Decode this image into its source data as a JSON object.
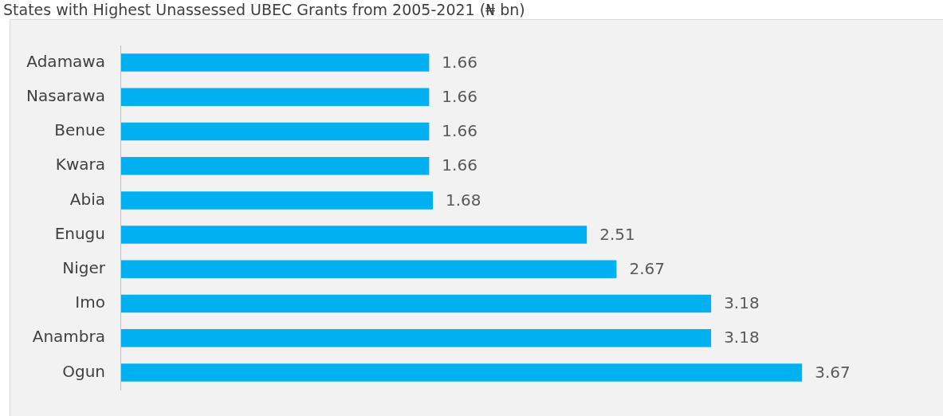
{
  "chart_data": {
    "type": "bar",
    "orientation": "horizontal",
    "title": "States with Highest Unassessed UBEC Grants from 2005-2021 (₦ bn)",
    "categories": [
      "Adamawa",
      "Nasarawa",
      "Benue",
      "Kwara",
      "Abia",
      "Enugu",
      "Niger",
      "Imo",
      "Anambra",
      "Ogun"
    ],
    "values": [
      1.66,
      1.66,
      1.66,
      1.66,
      1.68,
      2.51,
      2.67,
      3.18,
      3.18,
      3.67
    ],
    "color": "#00b0f0",
    "data_labels": true,
    "grid": false,
    "legend": false
  }
}
